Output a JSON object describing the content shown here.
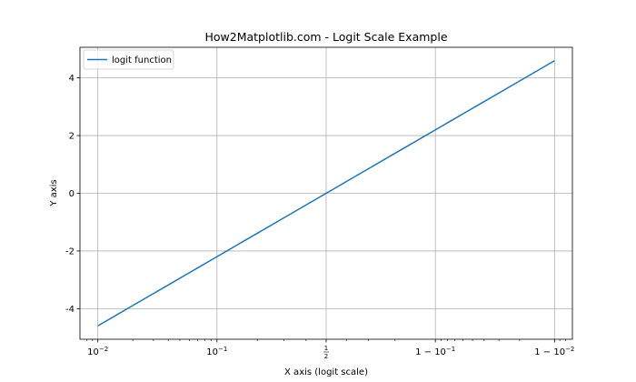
{
  "chart_data": {
    "type": "line",
    "title": "How2Matplotlib.com - Logit Scale Example",
    "xlabel": "X axis (logit scale)",
    "ylabel": "Y axis",
    "xscale": "logit",
    "xlim": [
      0.007,
      0.993
    ],
    "ylim": [
      -5.06,
      5.06
    ],
    "grid": true,
    "legend_position": "top-left",
    "x_ticks": [
      {
        "value": 0.01,
        "base": "10",
        "exp": "−2",
        "prefix": ""
      },
      {
        "value": 0.1,
        "base": "10",
        "exp": "−1",
        "prefix": ""
      },
      {
        "value": 0.5,
        "base": "",
        "exp": "",
        "prefix": "",
        "fraction": [
          "1",
          "2"
        ]
      },
      {
        "value": 0.9,
        "base": "10",
        "exp": "−1",
        "prefix": "1 − "
      },
      {
        "value": 0.99,
        "base": "10",
        "exp": "−2",
        "prefix": "1 − "
      }
    ],
    "y_ticks": [
      {
        "value": -4,
        "label": "-4"
      },
      {
        "value": -2,
        "label": "-2"
      },
      {
        "value": 0,
        "label": "0"
      },
      {
        "value": 2,
        "label": "2"
      },
      {
        "value": 4,
        "label": "4"
      }
    ],
    "series": [
      {
        "name": "logit function",
        "color": "#1f77b4",
        "x": [
          0.01,
          0.99
        ],
        "y": [
          -4.595,
          4.595
        ]
      }
    ]
  }
}
